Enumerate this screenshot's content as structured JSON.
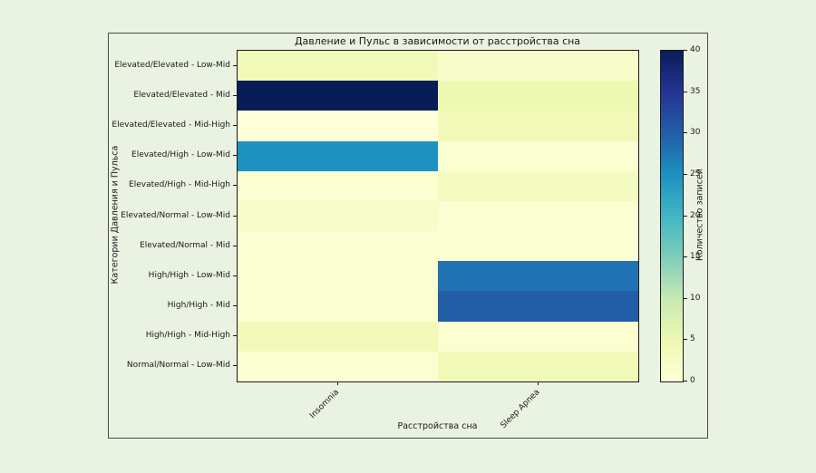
{
  "page": {
    "background_color": "#eaf2e2",
    "frame_border_color": "#4a4a4a"
  },
  "chart_data": {
    "type": "heatmap",
    "title": "Давление и Пульс в зависимости от расстройства сна",
    "xlabel": "Расстройства сна",
    "ylabel": "Категории Давления и Пульса",
    "x_categories": [
      "Insomnia",
      "Sleep Apnea"
    ],
    "y_categories": [
      "Elevated/Elevated - Low-Mid",
      "Elevated/Elevated - Mid",
      "Elevated/Elevated - Mid-High",
      "Elevated/High - Low-Mid",
      "Elevated/High - Mid-High",
      "Elevated/Normal - Low-Mid",
      "Elevated/Normal - Mid",
      "High/High - Low-Mid",
      "High/High - Mid",
      "High/High - Mid-High",
      "Normal/Normal - Low-Mid"
    ],
    "values": [
      [
        4,
        2
      ],
      [
        40,
        5
      ],
      [
        0,
        4
      ],
      [
        25,
        1
      ],
      [
        1,
        3
      ],
      [
        2,
        1
      ],
      [
        1,
        1
      ],
      [
        1,
        28
      ],
      [
        1,
        30
      ],
      [
        4,
        1
      ],
      [
        1,
        4
      ]
    ],
    "colorbar": {
      "label": "Количество записей",
      "min": 0,
      "max": 40,
      "ticks": [
        0,
        5,
        10,
        15,
        20,
        25,
        30,
        35,
        40
      ]
    },
    "colormap": {
      "name": "YlGnBu",
      "stops": [
        [
          0.0,
          "#ffffd9"
        ],
        [
          0.125,
          "#edf8b1"
        ],
        [
          0.25,
          "#c7e9b4"
        ],
        [
          0.375,
          "#7fcdbb"
        ],
        [
          0.5,
          "#41b6c4"
        ],
        [
          0.625,
          "#1d91c0"
        ],
        [
          0.75,
          "#225ea8"
        ],
        [
          0.875,
          "#253494"
        ],
        [
          1.0,
          "#081d58"
        ]
      ]
    },
    "x_tick_rotation_deg": 45,
    "grid": false,
    "legend": false
  }
}
